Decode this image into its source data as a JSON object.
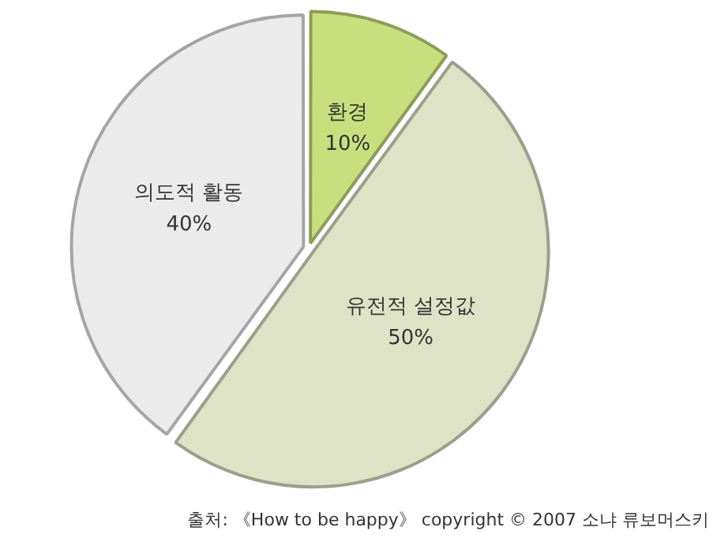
{
  "chart_data": {
    "type": "pie",
    "categories": [
      "환경",
      "유전적 설정값",
      "의도적 활동"
    ],
    "values": [
      10,
      50,
      40
    ],
    "colors": [
      "#c9df7e",
      "#dfe3c6",
      "#ebebeb"
    ],
    "value_labels": [
      "10%",
      "50%",
      "40%"
    ],
    "legend": false,
    "annotations": [
      "출처: 《How to be happy》 copyright © 2007 소냐 류보머스키"
    ]
  }
}
